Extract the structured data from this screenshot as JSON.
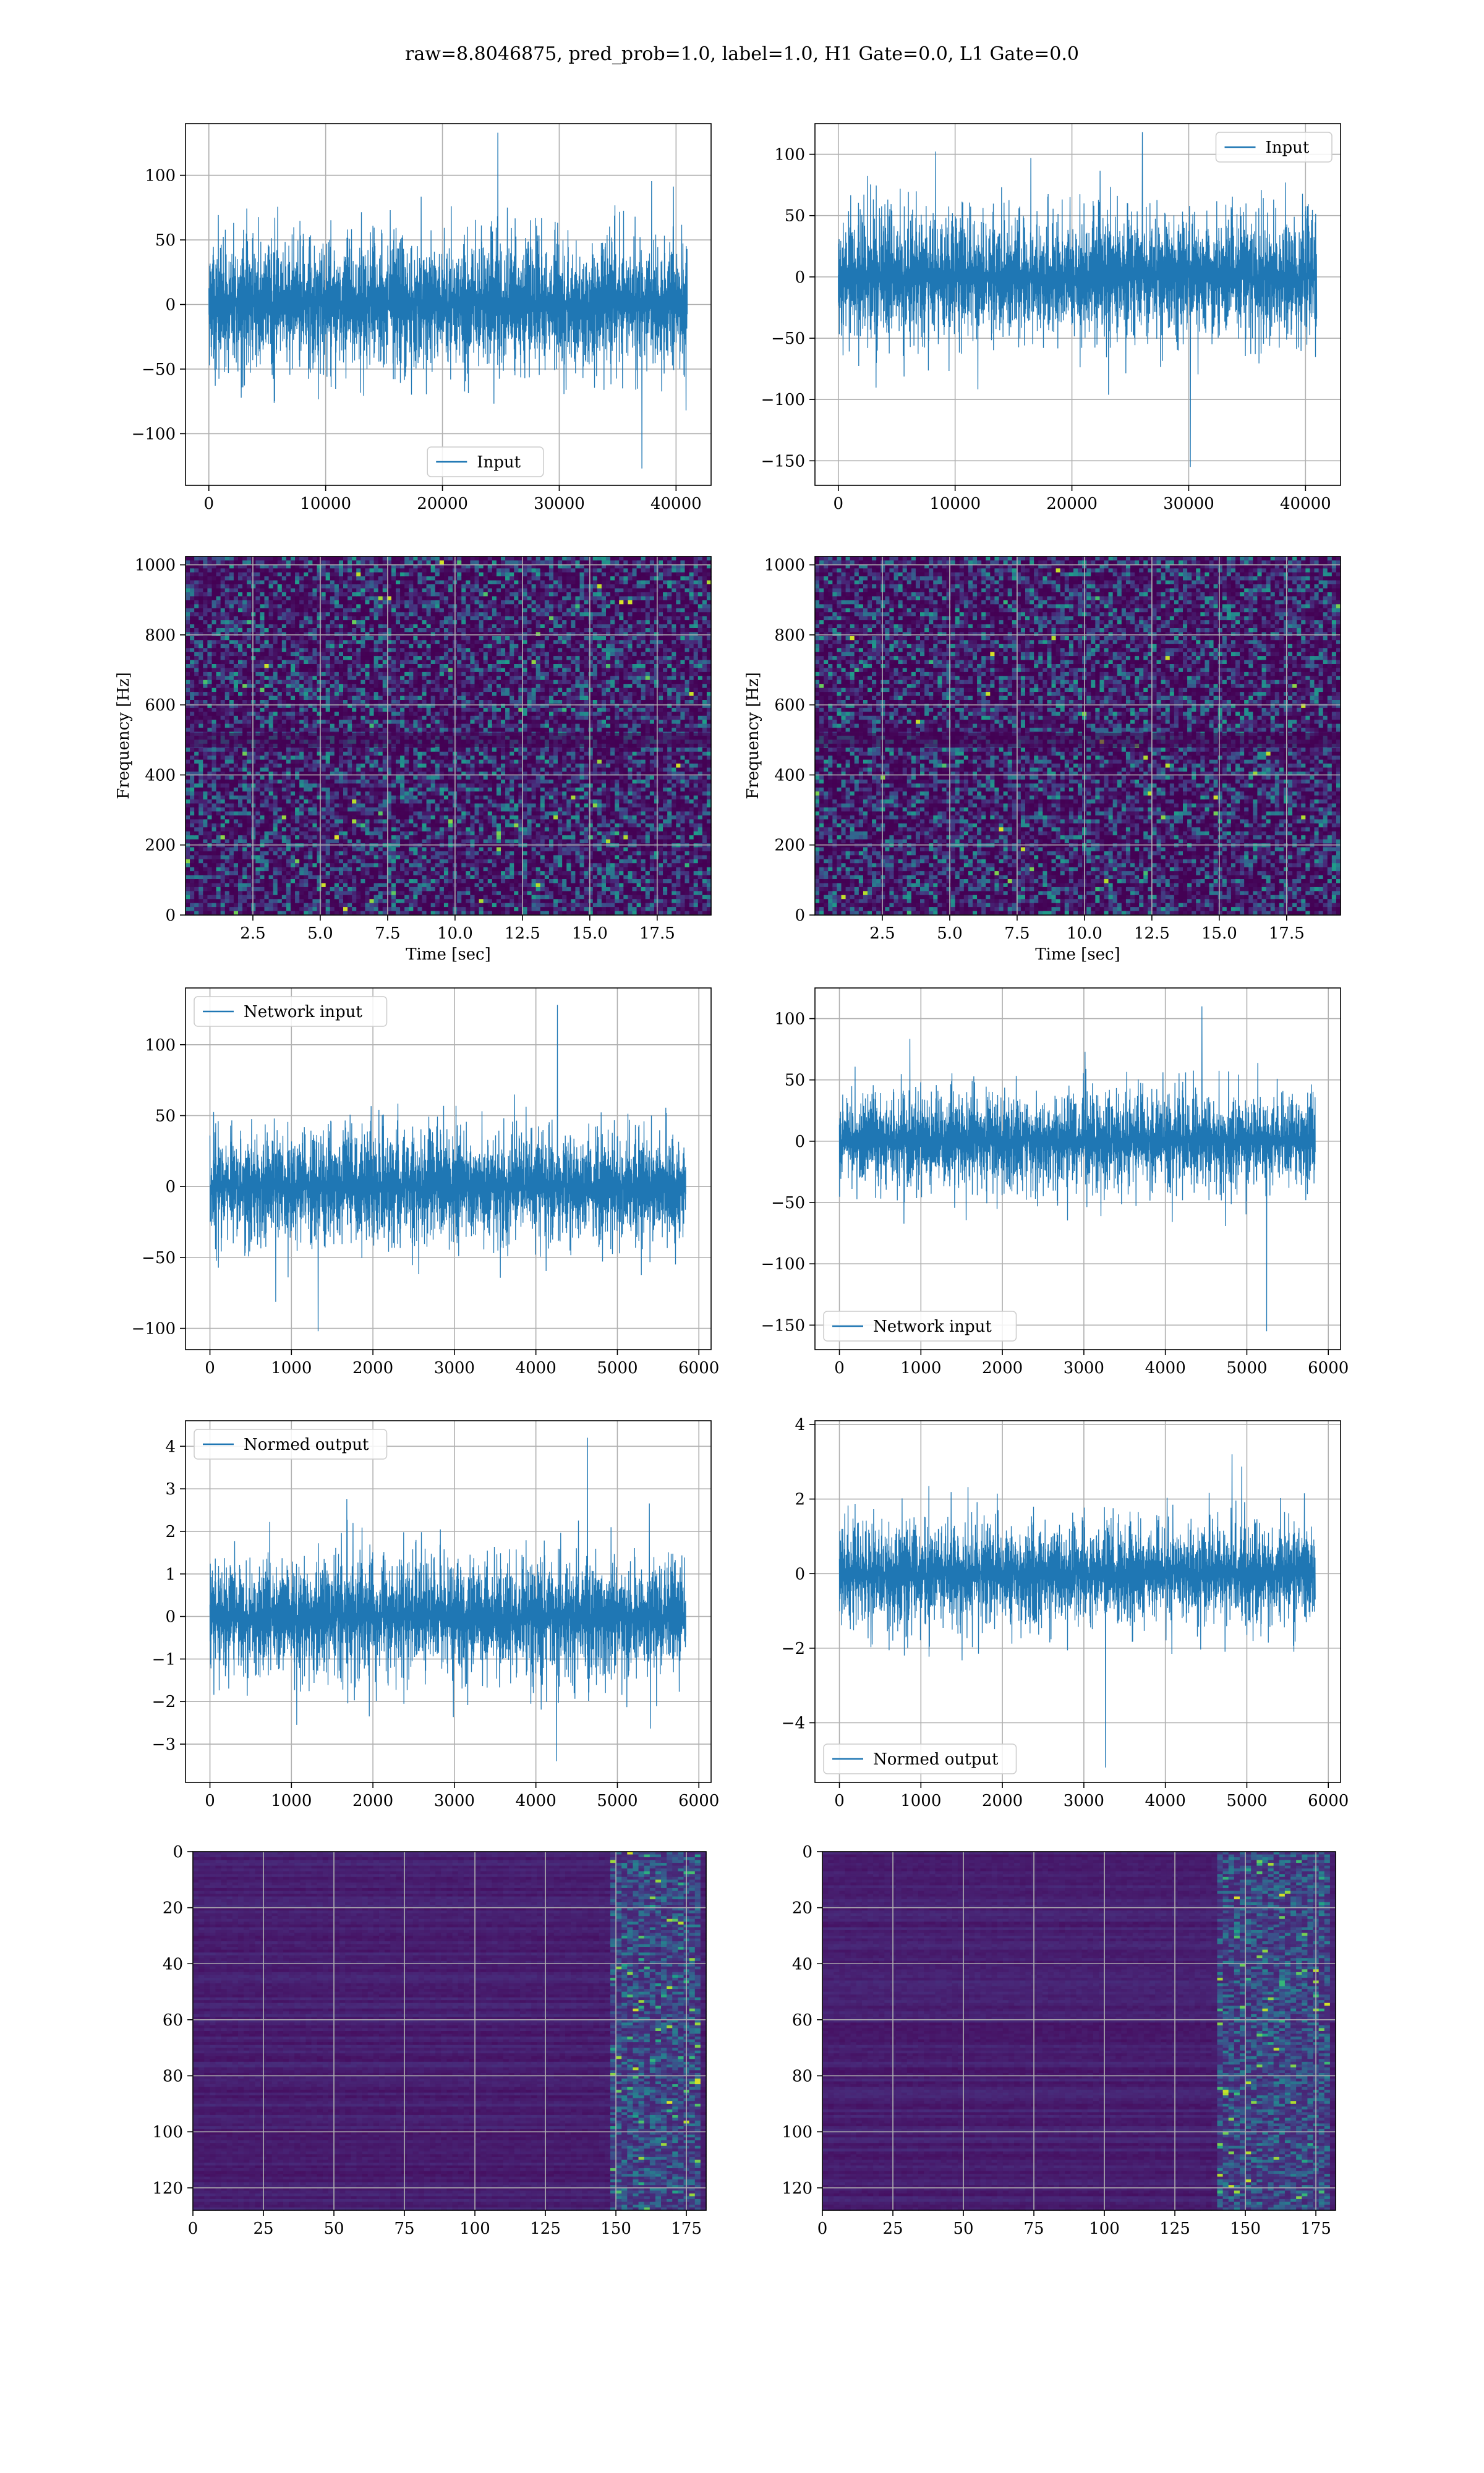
{
  "figure": {
    "suptitle": "raw=8.8046875, pred_prob=1.0, label=1.0, H1 Gate=0.0, L1 Gate=0.0"
  },
  "colors": {
    "line": "#1f77b4",
    "grid": "#b0b0b0",
    "viridis_dark": "#440154",
    "viridis_mid": "#3b528b",
    "viridis_teal": "#21918c",
    "viridis_green": "#5ec962",
    "viridis_yellow": "#fde725"
  },
  "chart_data": [
    {
      "id": "h1-input",
      "type": "line",
      "series": [
        {
          "name": "Input",
          "x_range": [
            0,
            40960
          ],
          "amplitude": 60,
          "peak_max": 133,
          "peak_min": -127
        }
      ],
      "xlim": [
        -2000,
        43000
      ],
      "ylim": [
        -140,
        140
      ],
      "xticks": [
        0,
        10000,
        20000,
        30000,
        40000
      ],
      "xtick_labels": [
        "0",
        "10000",
        "20000",
        "30000",
        "40000"
      ],
      "yticks": [
        -100,
        -50,
        0,
        50,
        100
      ],
      "ytick_labels": [
        "−100",
        "−50",
        "0",
        "50",
        "100"
      ],
      "legend": "bottom-center",
      "grid": true
    },
    {
      "id": "l1-input",
      "type": "line",
      "series": [
        {
          "name": "Input",
          "x_range": [
            0,
            40960
          ],
          "amplitude": 60,
          "peak_max": 118,
          "peak_min": -155
        }
      ],
      "xlim": [
        -2000,
        43000
      ],
      "ylim": [
        -170,
        125
      ],
      "xticks": [
        0,
        10000,
        20000,
        30000,
        40000
      ],
      "xtick_labels": [
        "0",
        "10000",
        "20000",
        "30000",
        "40000"
      ],
      "yticks": [
        -150,
        -100,
        -50,
        0,
        50,
        100
      ],
      "ytick_labels": [
        "−150",
        "−100",
        "−50",
        "0",
        "50",
        "100"
      ],
      "legend": "top-right",
      "grid": true
    },
    {
      "id": "h1-spectrogram",
      "type": "heatmap",
      "xlim": [
        0,
        19.5
      ],
      "ylim": [
        0,
        1024
      ],
      "xticks": [
        2.5,
        5,
        7.5,
        10,
        12.5,
        15,
        17.5
      ],
      "xtick_labels": [
        "2.5",
        "5.0",
        "7.5",
        "10.0",
        "12.5",
        "15.0",
        "17.5"
      ],
      "yticks": [
        0,
        200,
        400,
        600,
        800,
        1000
      ],
      "ytick_labels": [
        "0",
        "200",
        "400",
        "600",
        "800",
        "1000"
      ],
      "xlabel": "Time [sec]",
      "ylabel": "Frequency [Hz]",
      "grid": true,
      "colormap": "viridis"
    },
    {
      "id": "l1-spectrogram",
      "type": "heatmap",
      "xlim": [
        0,
        19.5
      ],
      "ylim": [
        0,
        1024
      ],
      "xticks": [
        2.5,
        5,
        7.5,
        10,
        12.5,
        15,
        17.5
      ],
      "xtick_labels": [
        "2.5",
        "5.0",
        "7.5",
        "10.0",
        "12.5",
        "15.0",
        "17.5"
      ],
      "yticks": [
        0,
        200,
        400,
        600,
        800,
        1000
      ],
      "ytick_labels": [
        "0",
        "200",
        "400",
        "600",
        "800",
        "1000"
      ],
      "xlabel": "Time [sec]",
      "ylabel": "Frequency [Hz]",
      "grid": true,
      "colormap": "viridis"
    },
    {
      "id": "h1-network-input",
      "type": "line",
      "series": [
        {
          "name": "Network input",
          "x_range": [
            0,
            5840
          ],
          "amplitude": 45,
          "peak_max": 128,
          "peak_min": -102
        }
      ],
      "xlim": [
        -300,
        6150
      ],
      "ylim": [
        -115,
        140
      ],
      "xticks": [
        0,
        1000,
        2000,
        3000,
        4000,
        5000,
        6000
      ],
      "xtick_labels": [
        "0",
        "1000",
        "2000",
        "3000",
        "4000",
        "5000",
        "6000"
      ],
      "yticks": [
        -100,
        -50,
        0,
        50,
        100
      ],
      "ytick_labels": [
        "−100",
        "−50",
        "0",
        "50",
        "100"
      ],
      "legend": "top-left",
      "grid": true
    },
    {
      "id": "l1-network-input",
      "type": "line",
      "series": [
        {
          "name": "Network input",
          "x_range": [
            0,
            5840
          ],
          "amplitude": 45,
          "peak_max": 110,
          "peak_min": -155
        }
      ],
      "xlim": [
        -300,
        6150
      ],
      "ylim": [
        -170,
        125
      ],
      "xticks": [
        0,
        1000,
        2000,
        3000,
        4000,
        5000,
        6000
      ],
      "xtick_labels": [
        "0",
        "1000",
        "2000",
        "3000",
        "4000",
        "5000",
        "6000"
      ],
      "yticks": [
        -150,
        -100,
        -50,
        0,
        50,
        100
      ],
      "ytick_labels": [
        "−150",
        "−100",
        "−50",
        "0",
        "50",
        "100"
      ],
      "legend": "bottom-left",
      "grid": true
    },
    {
      "id": "h1-normed-output",
      "type": "line",
      "series": [
        {
          "name": "Normed output",
          "x_range": [
            0,
            5840
          ],
          "amplitude": 1.6,
          "peak_max": 4.2,
          "peak_min": -3.4
        }
      ],
      "xlim": [
        -300,
        6150
      ],
      "ylim": [
        -3.9,
        4.6
      ],
      "xticks": [
        0,
        1000,
        2000,
        3000,
        4000,
        5000,
        6000
      ],
      "xtick_labels": [
        "0",
        "1000",
        "2000",
        "3000",
        "4000",
        "5000",
        "6000"
      ],
      "yticks": [
        -3,
        -2,
        -1,
        0,
        1,
        2,
        3,
        4
      ],
      "ytick_labels": [
        "−3",
        "−2",
        "−1",
        "0",
        "1",
        "2",
        "3",
        "4"
      ],
      "legend": "top-left",
      "grid": true
    },
    {
      "id": "l1-normed-output",
      "type": "line",
      "series": [
        {
          "name": "Normed output",
          "x_range": [
            0,
            5840
          ],
          "amplitude": 1.6,
          "peak_max": 3.2,
          "peak_min": -5.2
        }
      ],
      "xlim": [
        -300,
        6150
      ],
      "ylim": [
        -5.6,
        4.1
      ],
      "xticks": [
        0,
        1000,
        2000,
        3000,
        4000,
        5000,
        6000
      ],
      "xtick_labels": [
        "0",
        "1000",
        "2000",
        "3000",
        "4000",
        "5000",
        "6000"
      ],
      "yticks": [
        -4,
        -2,
        0,
        2,
        4
      ],
      "ytick_labels": [
        "−4",
        "−2",
        "0",
        "2",
        "4"
      ],
      "legend": "bottom-left",
      "grid": true
    },
    {
      "id": "h1-feature-map",
      "type": "heatmap",
      "xlim": [
        0,
        182
      ],
      "ylim": [
        128,
        0
      ],
      "xticks": [
        0,
        25,
        50,
        75,
        100,
        125,
        150,
        175
      ],
      "xtick_labels": [
        "0",
        "25",
        "50",
        "75",
        "100",
        "125",
        "150",
        "175"
      ],
      "yticks": [
        0,
        20,
        40,
        60,
        80,
        100,
        120
      ],
      "ytick_labels": [
        "0",
        "20",
        "40",
        "60",
        "80",
        "100",
        "120"
      ],
      "active_columns": [
        148,
        180
      ],
      "grid": true,
      "colormap": "viridis"
    },
    {
      "id": "l1-feature-map",
      "type": "heatmap",
      "xlim": [
        0,
        182
      ],
      "ylim": [
        128,
        0
      ],
      "xticks": [
        0,
        25,
        50,
        75,
        100,
        125,
        150,
        175
      ],
      "xtick_labels": [
        "0",
        "25",
        "50",
        "75",
        "100",
        "125",
        "150",
        "175"
      ],
      "yticks": [
        0,
        20,
        40,
        60,
        80,
        100,
        120
      ],
      "ytick_labels": [
        "0",
        "20",
        "40",
        "60",
        "80",
        "100",
        "120"
      ],
      "active_columns": [
        140,
        180
      ],
      "grid": true,
      "colormap": "viridis"
    }
  ]
}
